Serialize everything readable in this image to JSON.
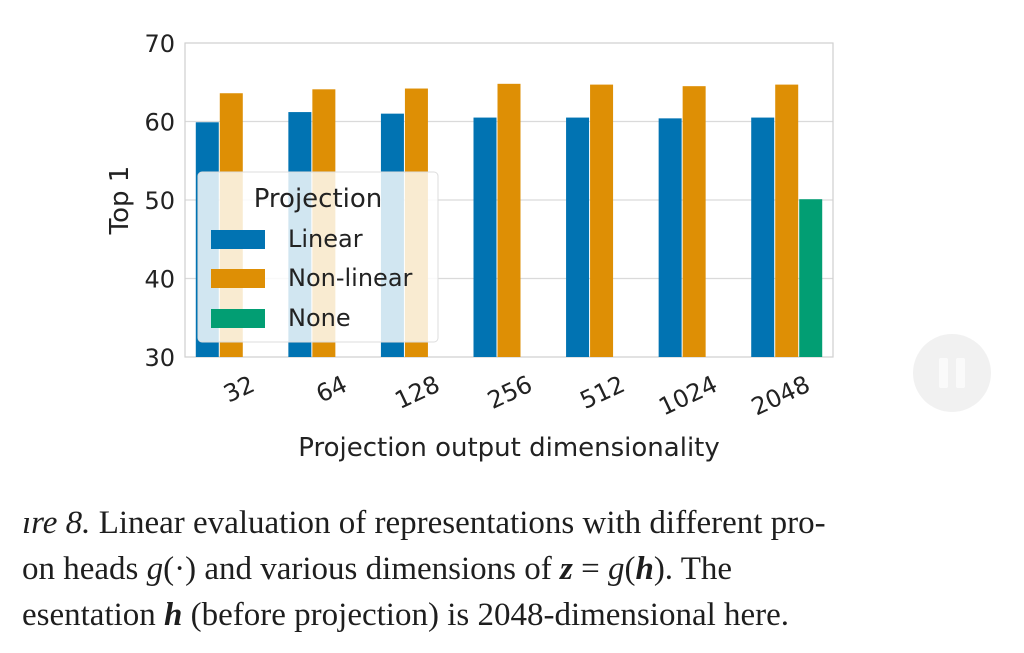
{
  "chart_data": {
    "type": "bar",
    "title": "",
    "xlabel": "Projection output dimensionality",
    "ylabel": "Top 1",
    "ylim": [
      30,
      70
    ],
    "yticks": [
      30,
      40,
      50,
      60,
      70
    ],
    "categories": [
      "32",
      "64",
      "128",
      "256",
      "512",
      "1024",
      "2048"
    ],
    "series": [
      {
        "name": "Linear",
        "color": "#0173b2",
        "values": [
          59.9,
          61.2,
          61.0,
          60.5,
          60.5,
          60.4,
          60.5
        ]
      },
      {
        "name": "Non-linear",
        "color": "#de8f05",
        "values": [
          63.6,
          64.1,
          64.2,
          64.8,
          64.7,
          64.5,
          64.7
        ]
      },
      {
        "name": "None",
        "color": "#029e73",
        "values": [
          null,
          null,
          null,
          null,
          null,
          null,
          50.1
        ]
      }
    ],
    "legend": {
      "title": "Projection",
      "position": "upper-left"
    },
    "grid": true
  },
  "caption": {
    "line1": {
      "fig": "ıre 8.",
      "text": " Linear evaluation of representations with different pro-"
    },
    "line2": {
      "a": "on heads ",
      "m1": "g",
      "b": "(·) and various dimensions of ",
      "z": "z",
      "eq": " = ",
      "m2": "g",
      "c": "(",
      "h": "h",
      "d": ").  The"
    },
    "line3": {
      "a": "esentation ",
      "h": "h",
      "b": " (before projection) is 2048-dimensional here."
    }
  },
  "pause_button": {
    "icon": "pause-icon"
  }
}
